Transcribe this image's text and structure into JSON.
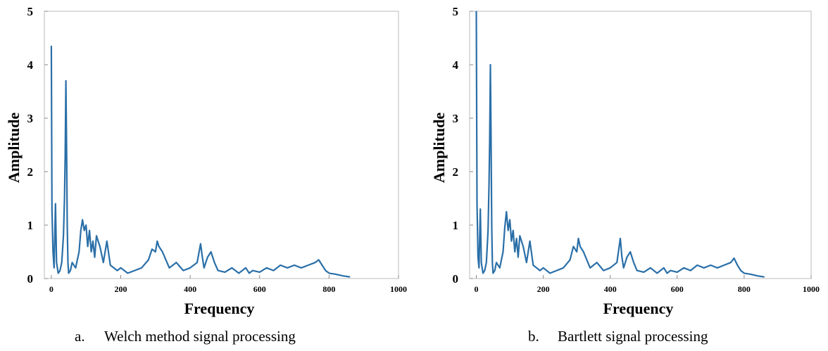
{
  "chart_data": [
    {
      "type": "line",
      "title": "",
      "xlabel": "Frequency",
      "ylabel": "Amplitude",
      "xlim": [
        -20,
        1000
      ],
      "ylim": [
        0,
        5
      ],
      "xticks": [
        "0",
        "200",
        "400",
        "600",
        "800",
        "1000"
      ],
      "yticks": [
        "0",
        "1",
        "2",
        "3",
        "4",
        "5"
      ],
      "grid": false,
      "series_color": "#2a6fa8",
      "caption_letter": "a.",
      "caption_text": "Welch method signal processing",
      "x": [
        0,
        2,
        5,
        8,
        12,
        15,
        20,
        25,
        30,
        35,
        38,
        40,
        42,
        44,
        46,
        48,
        50,
        55,
        60,
        70,
        80,
        85,
        90,
        95,
        100,
        105,
        110,
        115,
        120,
        125,
        130,
        140,
        150,
        160,
        170,
        180,
        190,
        200,
        220,
        240,
        260,
        280,
        290,
        300,
        305,
        310,
        320,
        330,
        340,
        350,
        360,
        380,
        400,
        420,
        430,
        435,
        440,
        450,
        460,
        470,
        480,
        500,
        520,
        540,
        560,
        570,
        580,
        600,
        620,
        640,
        660,
        680,
        700,
        720,
        740,
        760,
        770,
        780,
        790,
        800,
        820,
        840,
        860
      ],
      "values": [
        4.35,
        1.3,
        0.5,
        0.2,
        1.4,
        0.3,
        0.1,
        0.15,
        0.3,
        0.8,
        1.5,
        2.3,
        3.7,
        2.4,
        1.0,
        0.3,
        0.1,
        0.15,
        0.3,
        0.2,
        0.5,
        0.9,
        1.1,
        0.9,
        1.0,
        0.6,
        0.9,
        0.5,
        0.7,
        0.4,
        0.8,
        0.6,
        0.3,
        0.7,
        0.25,
        0.2,
        0.15,
        0.2,
        0.1,
        0.15,
        0.2,
        0.35,
        0.55,
        0.5,
        0.7,
        0.6,
        0.5,
        0.35,
        0.2,
        0.25,
        0.3,
        0.15,
        0.2,
        0.3,
        0.65,
        0.4,
        0.2,
        0.4,
        0.5,
        0.3,
        0.15,
        0.12,
        0.2,
        0.1,
        0.2,
        0.1,
        0.15,
        0.12,
        0.2,
        0.15,
        0.25,
        0.2,
        0.25,
        0.2,
        0.25,
        0.3,
        0.35,
        0.25,
        0.15,
        0.1,
        0.08,
        0.05,
        0.03
      ]
    },
    {
      "type": "line",
      "title": "",
      "xlabel": "Frequency",
      "ylabel": "Amplitude",
      "xlim": [
        -20,
        1000
      ],
      "ylim": [
        0,
        5
      ],
      "xticks": [
        "0",
        "200",
        "400",
        "600",
        "800",
        "1000"
      ],
      "yticks": [
        "0",
        "1",
        "2",
        "3",
        "4",
        "5"
      ],
      "grid": false,
      "series_color": "#2a6fa8",
      "caption_letter": "b.",
      "caption_text": "Bartlett signal processing",
      "x": [
        0,
        2,
        5,
        8,
        12,
        15,
        20,
        25,
        30,
        35,
        38,
        40,
        42,
        44,
        46,
        48,
        50,
        55,
        60,
        70,
        80,
        85,
        90,
        95,
        100,
        105,
        110,
        115,
        120,
        125,
        130,
        140,
        150,
        160,
        170,
        180,
        190,
        200,
        220,
        240,
        260,
        280,
        290,
        300,
        305,
        310,
        320,
        330,
        340,
        350,
        360,
        380,
        400,
        420,
        430,
        435,
        440,
        450,
        460,
        470,
        480,
        500,
        520,
        540,
        560,
        570,
        580,
        600,
        620,
        640,
        660,
        680,
        700,
        720,
        740,
        760,
        770,
        780,
        790,
        800,
        820,
        840,
        860
      ],
      "values": [
        5.0,
        1.4,
        0.4,
        0.2,
        1.3,
        0.3,
        0.1,
        0.15,
        0.3,
        0.9,
        1.8,
        2.6,
        4.0,
        2.7,
        1.0,
        0.3,
        0.1,
        0.15,
        0.3,
        0.2,
        0.5,
        0.95,
        1.25,
        0.9,
        1.1,
        0.7,
        0.9,
        0.5,
        0.75,
        0.4,
        0.8,
        0.6,
        0.3,
        0.7,
        0.25,
        0.2,
        0.15,
        0.2,
        0.1,
        0.15,
        0.2,
        0.35,
        0.6,
        0.5,
        0.75,
        0.6,
        0.5,
        0.35,
        0.2,
        0.25,
        0.3,
        0.15,
        0.2,
        0.3,
        0.75,
        0.4,
        0.2,
        0.4,
        0.5,
        0.3,
        0.15,
        0.12,
        0.2,
        0.1,
        0.2,
        0.1,
        0.15,
        0.12,
        0.2,
        0.15,
        0.25,
        0.2,
        0.25,
        0.2,
        0.25,
        0.3,
        0.38,
        0.25,
        0.15,
        0.1,
        0.08,
        0.05,
        0.03
      ]
    }
  ]
}
